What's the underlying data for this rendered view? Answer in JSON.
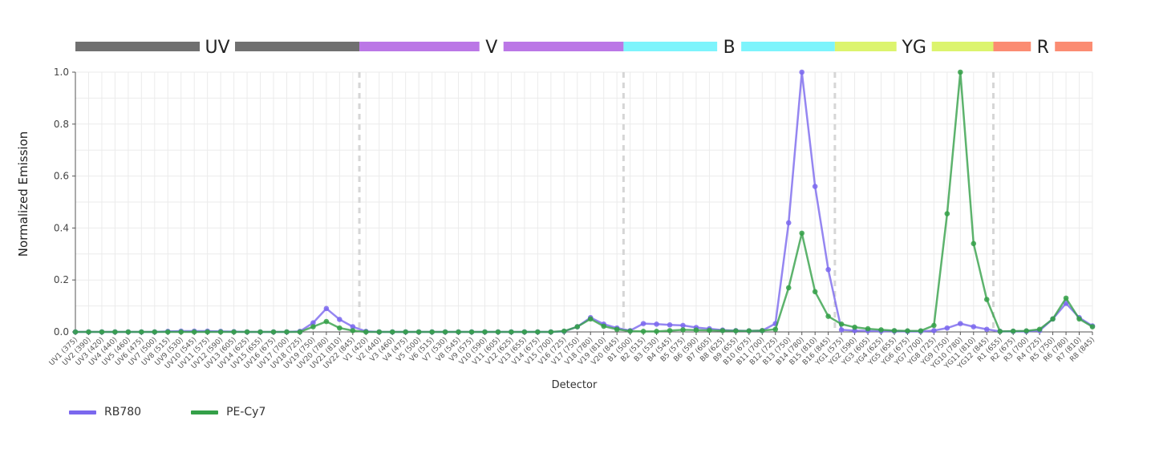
{
  "chart_data": {
    "type": "line",
    "ylabel": "Normalized Emission",
    "xlabel": "Detector",
    "ylim": [
      0,
      1
    ],
    "yticks": [
      "0.0",
      "0.2",
      "0.4",
      "0.6",
      "0.8",
      "1.0"
    ],
    "grid": true,
    "legend_position": "bottom-left",
    "lasers": [
      {
        "name": "UV",
        "color": "#707070",
        "first": 0,
        "last": 21
      },
      {
        "name": "V",
        "color": "#bb77e6",
        "first": 22,
        "last": 41
      },
      {
        "name": "B",
        "color": "#7df4fc",
        "first": 42,
        "last": 57
      },
      {
        "name": "YG",
        "color": "#dcf46e",
        "first": 58,
        "last": 69
      },
      {
        "name": "R",
        "color": "#fb8c72",
        "first": 70,
        "last": 77
      }
    ],
    "categories": [
      "UV1 (375)",
      "UV2 (390)",
      "UV3 (420)",
      "UV4 (440)",
      "UV5 (460)",
      "UV6 (475)",
      "UV7 (500)",
      "UV8 (515)",
      "UV9 (530)",
      "UV10 (545)",
      "UV11 (575)",
      "UV12 (590)",
      "UV13 (605)",
      "UV14 (625)",
      "UV15 (655)",
      "UV16 (675)",
      "UV17 (700)",
      "UV18 (725)",
      "UV19 (750)",
      "UV20 (780)",
      "UV21 (810)",
      "UV22 (845)",
      "V1 (420)",
      "V2 (440)",
      "V3 (460)",
      "V4 (475)",
      "V5 (500)",
      "V6 (515)",
      "V7 (530)",
      "V8 (545)",
      "V9 (575)",
      "V10 (590)",
      "V11 (605)",
      "V12 (625)",
      "V13 (655)",
      "V14 (675)",
      "V15 (700)",
      "V16 (725)",
      "V17 (750)",
      "V18 (780)",
      "V19 (810)",
      "V20 (845)",
      "B1 (500)",
      "B2 (515)",
      "B3 (530)",
      "B4 (545)",
      "B5 (575)",
      "B6 (590)",
      "B7 (605)",
      "B8 (625)",
      "B9 (655)",
      "B10 (675)",
      "B11 (700)",
      "B12 (725)",
      "B13 (750)",
      "B14 (780)",
      "B15 (810)",
      "B16 (845)",
      "YG1 (575)",
      "YG2 (590)",
      "YG3 (605)",
      "YG4 (625)",
      "YG5 (655)",
      "YG6 (675)",
      "YG7 (700)",
      "YG8 (725)",
      "YG9 (750)",
      "YG10 (780)",
      "YG11 (810)",
      "YG12 (845)",
      "R1 (655)",
      "R2 (675)",
      "R3 (700)",
      "R4 (725)",
      "R5 (750)",
      "R6 (780)",
      "R7 (810)",
      "R8 (845)"
    ],
    "series": [
      {
        "name": "RB780",
        "color": "#7b68ee",
        "values": [
          0,
          0,
          0,
          0,
          0,
          0,
          0,
          0.002,
          0.003,
          0.003,
          0.003,
          0.002,
          0.001,
          0,
          0,
          0,
          0,
          0.002,
          0.035,
          0.09,
          0.048,
          0.02,
          0.002,
          0,
          0,
          0,
          0,
          0,
          0,
          0,
          0,
          0,
          0,
          0,
          0,
          0,
          0,
          0.002,
          0.02,
          0.055,
          0.03,
          0.015,
          0.005,
          0.032,
          0.03,
          0.027,
          0.025,
          0.017,
          0.012,
          0.007,
          0.005,
          0.004,
          0.005,
          0.032,
          0.42,
          1.0,
          0.56,
          0.24,
          0.008,
          0.005,
          0.004,
          0.003,
          0.003,
          0.002,
          0.002,
          0.005,
          0.015,
          0.032,
          0.02,
          0.01,
          0.002,
          0.002,
          0.002,
          0.005,
          0.05,
          0.11,
          0.055,
          0.023
        ]
      },
      {
        "name": "PE-Cy7",
        "color": "#34a048",
        "values": [
          0,
          0,
          0,
          0,
          0,
          0,
          0,
          0,
          0,
          0,
          0,
          0,
          0,
          0,
          0,
          0,
          0,
          0,
          0.02,
          0.04,
          0.015,
          0.005,
          0,
          0,
          0,
          0,
          0,
          0,
          0,
          0,
          0,
          0,
          0,
          0,
          0,
          0,
          0,
          0.003,
          0.02,
          0.05,
          0.022,
          0.01,
          0.003,
          0.002,
          0.002,
          0.005,
          0.008,
          0.007,
          0.006,
          0.005,
          0.004,
          0.004,
          0.005,
          0.01,
          0.17,
          0.38,
          0.155,
          0.06,
          0.03,
          0.018,
          0.012,
          0.008,
          0.005,
          0.004,
          0.004,
          0.025,
          0.455,
          1.0,
          0.34,
          0.125,
          0.002,
          0.003,
          0.004,
          0.01,
          0.05,
          0.13,
          0.05,
          0.02
        ]
      }
    ]
  }
}
